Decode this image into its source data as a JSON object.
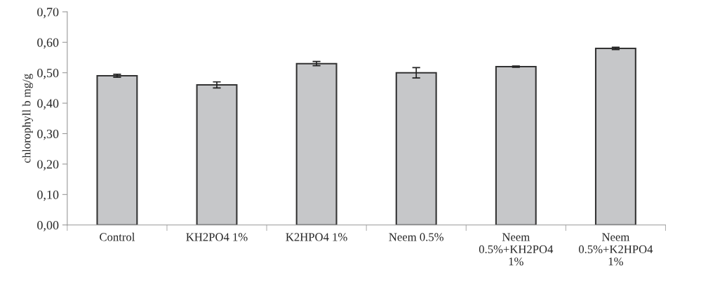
{
  "chart_data": {
    "type": "bar",
    "ylabel": "chlorophyll b mg/g",
    "categories": [
      "Control",
      "KH2PO4 1%",
      "K2HPO4 1%",
      "Neem 0.5%",
      "Neem\n0.5%+KH2PO4\n1%",
      "Neem\n0.5%+K2HPO4\n1%"
    ],
    "values": [
      0.49,
      0.46,
      0.53,
      0.5,
      0.52,
      0.58
    ],
    "errors": [
      0.005,
      0.01,
      0.007,
      0.017,
      0.002,
      0.004
    ],
    "color": "#c6c7c9",
    "ylim": [
      0,
      0.7
    ],
    "yticks": [
      {
        "value": 0,
        "label": "0,00"
      },
      {
        "value": 0.1,
        "label": "0,10"
      },
      {
        "value": 0.2,
        "label": "0,20"
      },
      {
        "value": 0.3,
        "label": "0,30"
      },
      {
        "value": 0.4,
        "label": "0,40"
      },
      {
        "value": 0.5,
        "label": "0,50"
      },
      {
        "value": 0.6,
        "label": "0,60"
      },
      {
        "value": 0.7,
        "label": "0,70"
      }
    ],
    "grid": false
  }
}
